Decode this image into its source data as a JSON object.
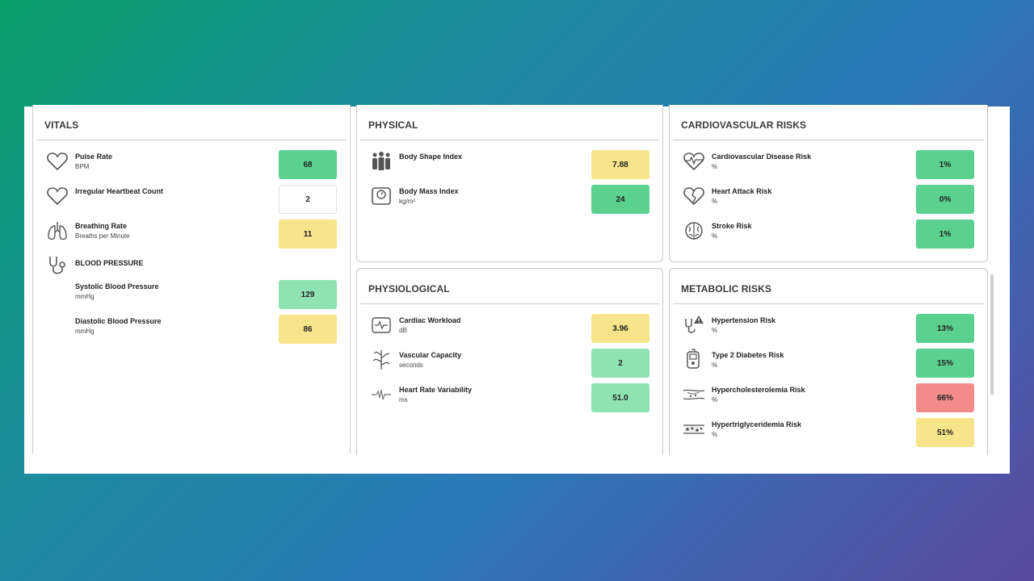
{
  "vitals": {
    "title": "VITALS",
    "pulse": {
      "label": "Pulse Rate",
      "unit": "BPM",
      "value": "68"
    },
    "irregular": {
      "label": "Irregular Heartbeat Count",
      "value": "2"
    },
    "breathing": {
      "label": "Breathing Rate",
      "unit": "Breaths per Minute",
      "value": "11"
    },
    "bp_title": "BLOOD PRESSURE",
    "systolic": {
      "label": "Systolic Blood Pressure",
      "unit": "mmHg",
      "value": "129"
    },
    "diastolic": {
      "label": "Diastolic Blood Pressure",
      "unit": "mmHg",
      "value": "86"
    }
  },
  "physical": {
    "title": "PHYSICAL",
    "bsi": {
      "label": "Body Shape Index",
      "value": "7.88"
    },
    "bmi": {
      "label": "Body Mass Index",
      "unit": "kg/m²",
      "value": "24"
    }
  },
  "cardio": {
    "title": "CARDIOVASCULAR RISKS",
    "cvd": {
      "label": "Cardiovascular Disease Risk",
      "unit": "%",
      "value": "1%"
    },
    "heart_attack": {
      "label": "Heart Attack Risk",
      "unit": "%",
      "value": "0%"
    },
    "stroke": {
      "label": "Stroke Risk",
      "unit": "%",
      "value": "1%"
    }
  },
  "physio": {
    "title": "PHYSIOLOGICAL",
    "workload": {
      "label": "Cardiac Workload",
      "unit": "dB",
      "value": "3.96"
    },
    "vascular": {
      "label": "Vascular Capacity",
      "unit": "seconds",
      "value": "2"
    },
    "hrv": {
      "label": "Heart Rate Variability",
      "unit": "ms",
      "value": "51.0"
    }
  },
  "metabolic": {
    "title": "METABOLIC RISKS",
    "hypertension": {
      "label": "Hypertension Risk",
      "unit": "%",
      "value": "13%"
    },
    "diabetes": {
      "label": "Type 2 Diabetes Risk",
      "unit": "%",
      "value": "15%"
    },
    "cholesterol": {
      "label": "Hypercholesterolemia Risk",
      "unit": "%",
      "value": "66%"
    },
    "triglyceride": {
      "label": "Hypertriglyceridemia Risk",
      "unit": "%",
      "value": "51%"
    }
  },
  "colors": {
    "good": "#5bd18f",
    "ok": "#8fe3b3",
    "warn": "#f8e48a",
    "bad": "#f38b8b"
  }
}
